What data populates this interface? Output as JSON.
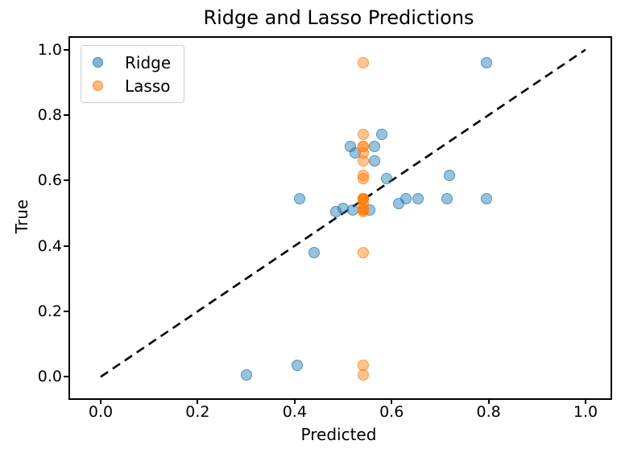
{
  "figure": {
    "background": "#ffffff"
  },
  "chart_data": {
    "type": "scatter",
    "title": "Ridge and Lasso Predictions",
    "xlabel": "Predicted",
    "ylabel": "True",
    "xlim": [
      -0.05,
      1.05
    ],
    "ylim": [
      -0.05,
      1.05
    ],
    "xticks": [
      0.0,
      0.2,
      0.4,
      0.6,
      0.8,
      1.0
    ],
    "xtick_labels": [
      "0.0",
      "0.2",
      "0.4",
      "0.6",
      "0.8",
      "1.0"
    ],
    "yticks": [
      0.0,
      0.2,
      0.4,
      0.6,
      0.8,
      1.0
    ],
    "ytick_labels": [
      "0.0",
      "0.2",
      "0.4",
      "0.6",
      "0.8",
      "1.0"
    ],
    "grid": false,
    "legend_position": "upper-left",
    "reference_line": {
      "type": "identity",
      "style": "dashed",
      "color": "#000000",
      "from": [
        0.0,
        0.0
      ],
      "to": [
        1.0,
        1.0
      ]
    },
    "series": [
      {
        "name": "Ridge",
        "color": "#1f77b4",
        "alpha": 0.5,
        "marker": "circle",
        "points": [
          [
            0.3,
            0.005
          ],
          [
            0.405,
            0.035
          ],
          [
            0.41,
            0.545
          ],
          [
            0.44,
            0.38
          ],
          [
            0.485,
            0.505
          ],
          [
            0.5,
            0.515
          ],
          [
            0.515,
            0.705
          ],
          [
            0.52,
            0.51
          ],
          [
            0.525,
            0.685
          ],
          [
            0.555,
            0.51
          ],
          [
            0.565,
            0.705
          ],
          [
            0.565,
            0.66
          ],
          [
            0.58,
            0.74
          ],
          [
            0.59,
            0.605
          ],
          [
            0.615,
            0.53
          ],
          [
            0.63,
            0.545
          ],
          [
            0.655,
            0.545
          ],
          [
            0.715,
            0.545
          ],
          [
            0.72,
            0.615
          ],
          [
            0.795,
            0.545
          ],
          [
            0.795,
            0.96
          ]
        ]
      },
      {
        "name": "Lasso",
        "color": "#ff7f0e",
        "alpha": 0.5,
        "marker": "circle",
        "points": [
          [
            0.542,
            0.96
          ],
          [
            0.542,
            0.74
          ],
          [
            0.542,
            0.705
          ],
          [
            0.542,
            0.705
          ],
          [
            0.542,
            0.685
          ],
          [
            0.542,
            0.66
          ],
          [
            0.542,
            0.615
          ],
          [
            0.542,
            0.605
          ],
          [
            0.542,
            0.545
          ],
          [
            0.542,
            0.545
          ],
          [
            0.542,
            0.545
          ],
          [
            0.542,
            0.545
          ],
          [
            0.542,
            0.545
          ],
          [
            0.542,
            0.53
          ],
          [
            0.542,
            0.515
          ],
          [
            0.542,
            0.51
          ],
          [
            0.542,
            0.51
          ],
          [
            0.542,
            0.505
          ],
          [
            0.542,
            0.38
          ],
          [
            0.542,
            0.035
          ],
          [
            0.542,
            0.005
          ]
        ]
      }
    ]
  }
}
